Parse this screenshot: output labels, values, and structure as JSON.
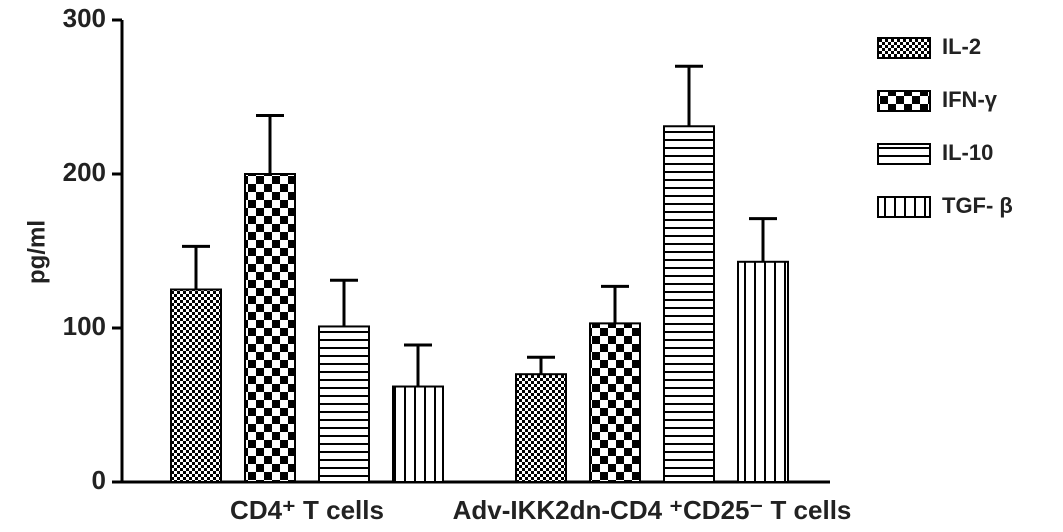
{
  "chart_data": {
    "type": "bar",
    "y_label": "pg/ml",
    "categories": [
      "CD4⁺ T cells",
      "Adv-IKK2dn-CD4 ⁺CD25⁻ T cells"
    ],
    "series": [
      {
        "name": "IL-2",
        "color": "#000000",
        "pattern": "fine-checker",
        "values": [
          125,
          70
        ],
        "errors": [
          28,
          11
        ]
      },
      {
        "name": "IFN-γ",
        "color": "#000000",
        "pattern": "coarse-checker",
        "values": [
          200,
          103
        ],
        "errors": [
          38,
          24
        ]
      },
      {
        "name": "IL-10",
        "color": "#000000",
        "pattern": "horizontal-lines",
        "values": [
          101,
          231
        ],
        "errors": [
          30,
          39
        ]
      },
      {
        "name": "TGF- β",
        "color": "#000000",
        "pattern": "vertical-lines",
        "values": [
          62,
          143
        ],
        "errors": [
          27,
          28
        ]
      }
    ],
    "ylim": [
      0,
      300
    ],
    "yticks": [
      0,
      100,
      200,
      300
    ],
    "grid": false,
    "legend": "right"
  }
}
